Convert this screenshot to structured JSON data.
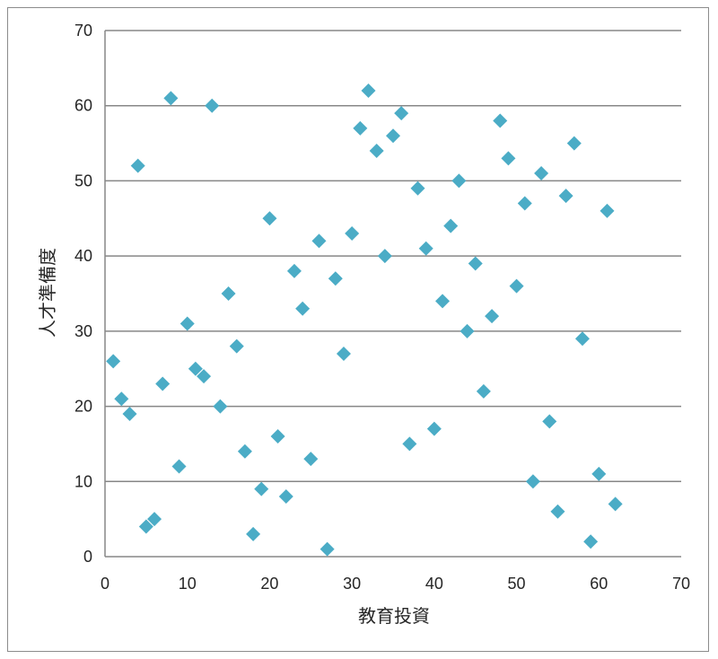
{
  "chart_data": {
    "type": "scatter",
    "title": "",
    "xlabel": "教育投資",
    "ylabel": "人才準備度",
    "xlim": [
      0,
      70
    ],
    "ylim": [
      0,
      70
    ],
    "xticks": [
      0,
      10,
      20,
      30,
      40,
      50,
      60,
      70
    ],
    "yticks": [
      0,
      10,
      20,
      30,
      40,
      50,
      60,
      70
    ],
    "grid": "horizontal",
    "legend": "none",
    "marker": "diamond",
    "marker_color": "#4BACC6",
    "series": [
      {
        "x": [
          1,
          2,
          3,
          4,
          5,
          6,
          7,
          8,
          9,
          10,
          11,
          12,
          13,
          14,
          15,
          16,
          17,
          18,
          19,
          20,
          21,
          22,
          23,
          24,
          25,
          26,
          27,
          28,
          29,
          30,
          31,
          32,
          33,
          34,
          35,
          36,
          37,
          38,
          39,
          40,
          41,
          42,
          43,
          44,
          45,
          46,
          47,
          48,
          49,
          50,
          51,
          52,
          53,
          54,
          55,
          56,
          57,
          58,
          59,
          60,
          61,
          62
        ],
        "y": [
          26,
          21,
          19,
          52,
          4,
          5,
          23,
          61,
          12,
          31,
          25,
          24,
          60,
          20,
          35,
          28,
          14,
          3,
          9,
          45,
          16,
          8,
          38,
          33,
          13,
          42,
          1,
          37,
          27,
          43,
          57,
          62,
          54,
          40,
          56,
          59,
          15,
          49,
          41,
          17,
          34,
          44,
          50,
          30,
          39,
          22,
          32,
          58,
          53,
          36,
          47,
          10,
          51,
          18,
          6,
          48,
          55,
          29,
          2,
          11,
          46,
          7
        ]
      }
    ]
  }
}
